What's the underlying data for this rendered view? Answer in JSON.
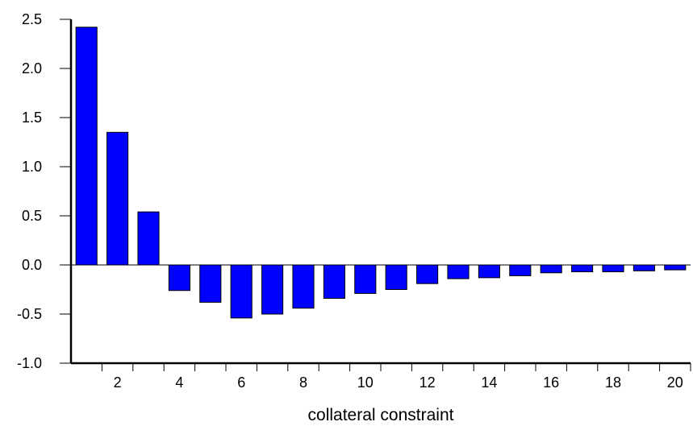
{
  "chart_data": {
    "type": "bar",
    "title": "",
    "xlabel": "collateral constraint",
    "ylabel": "",
    "x": [
      1,
      2,
      3,
      4,
      5,
      6,
      7,
      8,
      9,
      10,
      11,
      12,
      13,
      14,
      15,
      16,
      17,
      18,
      19,
      20
    ],
    "values": [
      2.42,
      1.35,
      0.54,
      -0.26,
      -0.38,
      -0.54,
      -0.5,
      -0.44,
      -0.34,
      -0.29,
      -0.25,
      -0.19,
      -0.14,
      -0.13,
      -0.11,
      -0.08,
      -0.07,
      -0.07,
      -0.06,
      -0.05
    ],
    "xlim": [
      0.5,
      20.5
    ],
    "ylim": [
      -1.0,
      2.5
    ],
    "x_tick_labels": [
      "2",
      "4",
      "6",
      "8",
      "10",
      "12",
      "14",
      "16",
      "18",
      "20"
    ],
    "y_tick_labels": [
      "-1.0",
      "-0.5",
      "0.0",
      "0.5",
      "1.0",
      "1.5",
      "2.0",
      "2.5"
    ],
    "grid": false,
    "legend": "none",
    "bar_color": "#0000ff",
    "bar_edge_color": "#000000"
  }
}
